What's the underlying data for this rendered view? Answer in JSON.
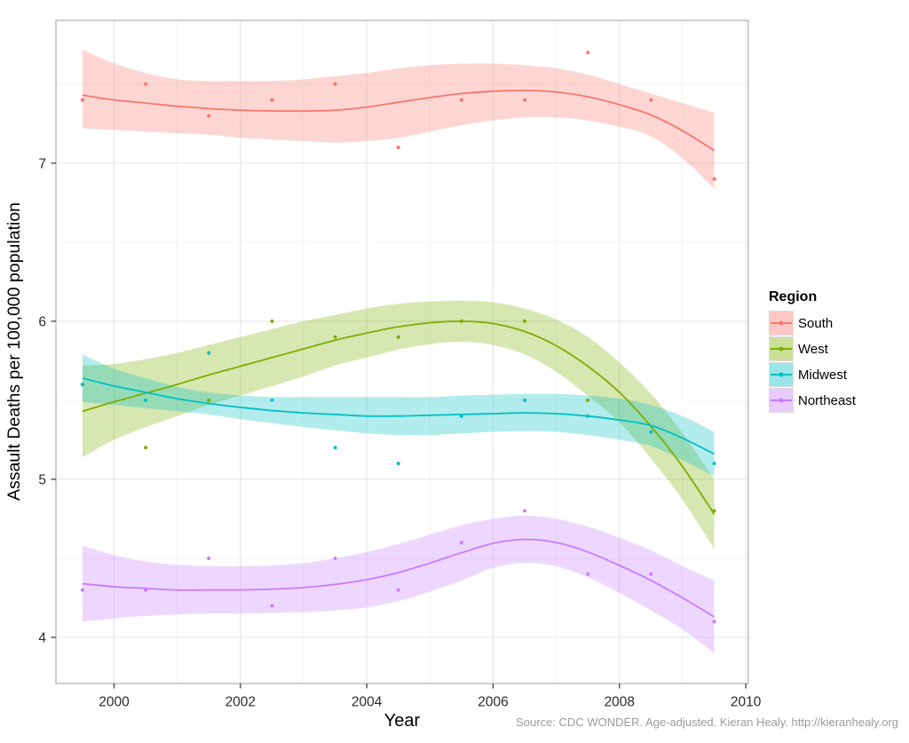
{
  "chart_data": {
    "type": "scatter",
    "title": "",
    "xlabel": "Year",
    "ylabel": "Assault Deaths per 100,000 population",
    "source_note": "Source: CDC WONDER. Age-adjusted. Kieran Healy. http://kieranhealy.org",
    "legend": {
      "title": "Region",
      "position": "right"
    },
    "axes": {
      "xlim": [
        1999.08,
        2010.04
      ],
      "ylim": [
        3.708,
        7.903
      ],
      "x_major_ticks": [
        2000,
        2002,
        2004,
        2006,
        2008,
        2010
      ],
      "x_minor_ticks": [
        2001,
        2003,
        2005,
        2007,
        2009
      ],
      "y_major_ticks": [
        4,
        5,
        6,
        7
      ],
      "y_minor_ticks": [
        4.5,
        5.5,
        6.5,
        7.5
      ],
      "grid": true
    },
    "series": [
      {
        "name": "South",
        "color": "#F8766D",
        "points_x": [
          1999.5,
          2000.5,
          2001.5,
          2002.5,
          2003.5,
          2004.5,
          2005.5,
          2006.5,
          2007.5,
          2008.5,
          2009.5
        ],
        "points_y": [
          7.4,
          7.5,
          7.3,
          7.4,
          7.5,
          7.1,
          7.4,
          7.4,
          7.7,
          7.4,
          6.9
        ],
        "smooth_x_start": 1999.5,
        "smooth_x_step": 0.5,
        "smooth_y": [
          7.43,
          7.4,
          7.38,
          7.36,
          7.345,
          7.335,
          7.33,
          7.33,
          7.335,
          7.355,
          7.385,
          7.415,
          7.44,
          7.455,
          7.46,
          7.45,
          7.42,
          7.37,
          7.305,
          7.205,
          7.08
        ],
        "ci_upper": [
          7.72,
          7.63,
          7.57,
          7.53,
          7.52,
          7.52,
          7.52,
          7.53,
          7.55,
          7.57,
          7.6,
          7.62,
          7.63,
          7.63,
          7.62,
          7.6,
          7.56,
          7.5,
          7.44,
          7.38,
          7.32
        ],
        "ci_lower": [
          7.22,
          7.21,
          7.2,
          7.19,
          7.18,
          7.16,
          7.15,
          7.14,
          7.13,
          7.14,
          7.16,
          7.2,
          7.24,
          7.27,
          7.29,
          7.29,
          7.27,
          7.23,
          7.17,
          7.03,
          6.84
        ]
      },
      {
        "name": "West",
        "color": "#7CAE00",
        "points_x": [
          1999.5,
          2000.5,
          2001.5,
          2002.5,
          2003.5,
          2004.5,
          2005.5,
          2006.5,
          2007.5,
          2008.5,
          2009.5
        ],
        "points_y": [
          5.6,
          5.2,
          5.5,
          6.0,
          5.9,
          5.9,
          6.0,
          6.0,
          5.5,
          5.3,
          4.8
        ],
        "smooth_x_start": 1999.5,
        "smooth_x_step": 0.5,
        "smooth_y": [
          5.43,
          5.49,
          5.545,
          5.6,
          5.66,
          5.715,
          5.77,
          5.825,
          5.88,
          5.925,
          5.965,
          5.99,
          6.0,
          5.985,
          5.935,
          5.845,
          5.715,
          5.55,
          5.335,
          5.08,
          4.78
        ],
        "ci_upper": [
          5.72,
          5.73,
          5.76,
          5.8,
          5.85,
          5.9,
          5.95,
          6.0,
          6.04,
          6.08,
          6.11,
          6.125,
          6.13,
          6.12,
          6.08,
          6.01,
          5.9,
          5.74,
          5.54,
          5.29,
          5.0
        ],
        "ci_lower": [
          5.14,
          5.25,
          5.33,
          5.4,
          5.47,
          5.53,
          5.59,
          5.65,
          5.72,
          5.77,
          5.82,
          5.855,
          5.87,
          5.85,
          5.79,
          5.68,
          5.53,
          5.36,
          5.13,
          4.87,
          4.56
        ]
      },
      {
        "name": "Midwest",
        "color": "#00BFC4",
        "points_x": [
          1999.5,
          2000.5,
          2001.5,
          2002.5,
          2003.5,
          2004.5,
          2005.5,
          2006.5,
          2007.5,
          2008.5,
          2009.5
        ],
        "points_y": [
          5.6,
          5.5,
          5.8,
          5.5,
          5.2,
          5.1,
          5.4,
          5.5,
          5.4,
          5.3,
          5.1
        ],
        "smooth_x_start": 1999.5,
        "smooth_x_step": 0.5,
        "smooth_y": [
          5.64,
          5.59,
          5.55,
          5.51,
          5.48,
          5.455,
          5.435,
          5.42,
          5.41,
          5.4,
          5.4,
          5.405,
          5.41,
          5.415,
          5.42,
          5.415,
          5.4,
          5.375,
          5.34,
          5.26,
          5.16
        ],
        "ci_upper": [
          5.79,
          5.7,
          5.64,
          5.585,
          5.55,
          5.53,
          5.52,
          5.52,
          5.52,
          5.52,
          5.52,
          5.52,
          5.53,
          5.535,
          5.54,
          5.54,
          5.53,
          5.51,
          5.47,
          5.4,
          5.3
        ],
        "ci_lower": [
          5.49,
          5.47,
          5.45,
          5.43,
          5.41,
          5.38,
          5.355,
          5.33,
          5.31,
          5.29,
          5.28,
          5.28,
          5.29,
          5.3,
          5.305,
          5.3,
          5.28,
          5.25,
          5.21,
          5.12,
          5.02
        ]
      },
      {
        "name": "Northeast",
        "color": "#C77CFF",
        "points_x": [
          1999.5,
          2000.5,
          2001.5,
          2002.5,
          2003.5,
          2004.5,
          2005.5,
          2006.5,
          2007.5,
          2008.5,
          2009.5
        ],
        "points_y": [
          4.3,
          4.3,
          4.5,
          4.2,
          4.5,
          4.3,
          4.6,
          4.8,
          4.4,
          4.4,
          4.1
        ],
        "smooth_x_start": 1999.5,
        "smooth_x_step": 0.5,
        "smooth_y": [
          4.34,
          4.32,
          4.31,
          4.3,
          4.3,
          4.3,
          4.305,
          4.315,
          4.335,
          4.365,
          4.41,
          4.47,
          4.535,
          4.595,
          4.62,
          4.6,
          4.54,
          4.455,
          4.36,
          4.25,
          4.13
        ],
        "ci_upper": [
          4.58,
          4.52,
          4.48,
          4.46,
          4.45,
          4.45,
          4.455,
          4.47,
          4.5,
          4.54,
          4.59,
          4.65,
          4.71,
          4.75,
          4.77,
          4.75,
          4.7,
          4.63,
          4.55,
          4.45,
          4.36
        ],
        "ci_lower": [
          4.1,
          4.12,
          4.135,
          4.145,
          4.15,
          4.15,
          4.155,
          4.16,
          4.17,
          4.19,
          4.23,
          4.29,
          4.36,
          4.44,
          4.47,
          4.45,
          4.38,
          4.28,
          4.17,
          4.05,
          3.9
        ]
      }
    ]
  }
}
